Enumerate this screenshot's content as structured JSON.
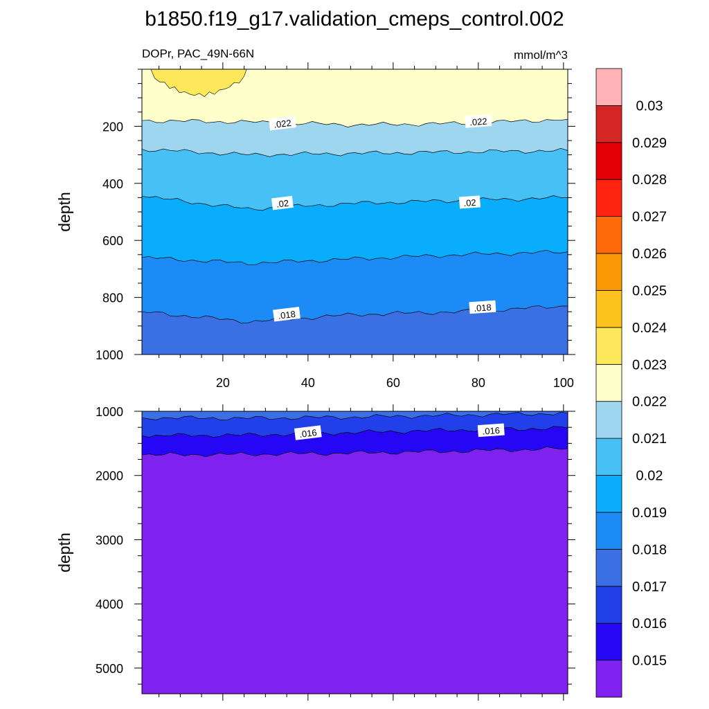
{
  "chart_data": {
    "title": "b1850.f19_g17.validation_cmeps_control.002",
    "variable_label": "DOPr, PAC_49N-66N",
    "units": "mmol/m^3",
    "type": "contour",
    "colorbar": {
      "levels": [
        "0.015",
        "0.016",
        "0.017",
        "0.018",
        "0.019",
        "0.02",
        "0.021",
        "0.022",
        "0.023",
        "0.024",
        "0.025",
        "0.026",
        "0.027",
        "0.028",
        "0.029",
        "0.03"
      ],
      "colors": [
        "#7f22f0",
        "#2507f5",
        "#2240ea",
        "#3b6fe4",
        "#1c8bf5",
        "#0aadfc",
        "#47c0f5",
        "#9fd6ef",
        "#ffffcc",
        "#fde85c",
        "#fcc31f",
        "#fb9a06",
        "#ff6b0b",
        "#ff2410",
        "#e20006",
        "#d42625",
        "#ffb3b6"
      ]
    },
    "panels": [
      {
        "name": "upper",
        "xlim": [
          1,
          101
        ],
        "ylim": [
          0,
          1000
        ],
        "x_ticks": [
          20,
          40,
          60,
          80,
          100
        ],
        "y_ticks": [
          200,
          400,
          600,
          800,
          1000
        ],
        "ylabel": "depth",
        "contour_lines": [
          {
            "level": 0.022,
            "depth": [
              180,
              185,
              195,
              190,
              175
            ]
          },
          {
            "level": 0.021,
            "depth": [
              280,
              300,
              295,
              290,
              285
            ]
          },
          {
            "level": 0.02,
            "depth": [
              445,
              490,
              470,
              460,
              450
            ]
          },
          {
            "level": 0.019,
            "depth": [
              660,
              680,
              665,
              650,
              640
            ]
          },
          {
            "level": 0.018,
            "depth": [
              850,
              885,
              860,
              850,
              830
            ]
          }
        ],
        "contour_labels": [
          {
            "text": ".022",
            "x": 34,
            "depth": 190
          },
          {
            "text": ".022",
            "x": 80,
            "depth": 183
          },
          {
            "text": ".02",
            "x": 34,
            "depth": 470
          },
          {
            "text": ".02",
            "x": 78,
            "depth": 467
          },
          {
            "text": ".018",
            "x": 35,
            "depth": 860
          },
          {
            "text": ".018",
            "x": 81,
            "depth": 835
          }
        ],
        "max_patch": {
          "level": "0.023",
          "x_range": [
            4,
            25
          ],
          "depth_range": [
            0,
            90
          ]
        }
      },
      {
        "name": "lower",
        "xlim": [
          1,
          101
        ],
        "ylim": [
          1000,
          5400
        ],
        "x_ticks": [
          20,
          40,
          60,
          80,
          100
        ],
        "y_ticks": [
          1000,
          2000,
          3000,
          4000,
          5000
        ],
        "ylabel": "depth",
        "contour_lines": [
          {
            "level": 0.017,
            "depth": [
              1100,
              1110,
              1090,
              1060,
              1030
            ]
          },
          {
            "level": 0.016,
            "depth": [
              1380,
              1370,
              1330,
              1290,
              1260
            ]
          },
          {
            "level": 0.015,
            "depth": [
              1680,
              1670,
              1650,
              1620,
              1580
            ]
          }
        ],
        "contour_labels": [
          {
            "text": ".016",
            "x": 40,
            "depth": 1340
          },
          {
            "text": ".016",
            "x": 83,
            "depth": 1300
          }
        ]
      }
    ]
  }
}
